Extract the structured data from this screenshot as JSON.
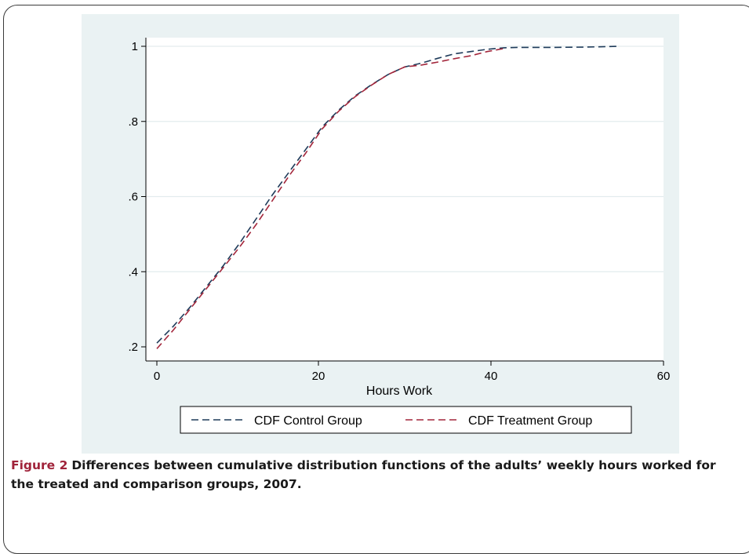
{
  "chart_data": {
    "type": "line",
    "xlabel": "Hours Work",
    "ylabel": "",
    "xlim": [
      0,
      60
    ],
    "ylim": [
      0.2,
      1.0
    ],
    "x_ticks": [
      0,
      20,
      40,
      60
    ],
    "x_tick_labels": [
      "0",
      "20",
      "40",
      "60"
    ],
    "y_ticks": [
      0.2,
      0.4,
      0.6,
      0.8,
      1.0
    ],
    "y_tick_labels": [
      ".2",
      ".4",
      ".6",
      ".8",
      "1"
    ],
    "grid": "horizontal",
    "legend_position": "bottom",
    "series": [
      {
        "name": "CDF Control Group",
        "color": "#1f3b5a",
        "dash": "dashed",
        "points": [
          [
            0,
            0.21
          ],
          [
            2,
            0.255
          ],
          [
            4,
            0.305
          ],
          [
            6,
            0.36
          ],
          [
            8,
            0.415
          ],
          [
            10,
            0.475
          ],
          [
            12,
            0.54
          ],
          [
            14,
            0.605
          ],
          [
            16,
            0.665
          ],
          [
            18,
            0.725
          ],
          [
            20,
            0.785
          ],
          [
            22,
            0.83
          ],
          [
            24,
            0.868
          ],
          [
            26,
            0.898
          ],
          [
            28,
            0.925
          ],
          [
            30,
            0.945
          ],
          [
            32,
            0.955
          ],
          [
            34,
            0.968
          ],
          [
            36,
            0.98
          ],
          [
            38,
            0.986
          ],
          [
            40,
            0.992
          ],
          [
            42,
            0.996
          ],
          [
            44,
            0.997
          ],
          [
            48,
            0.997
          ],
          [
            52,
            0.998
          ],
          [
            56,
            1.0
          ]
        ]
      },
      {
        "name": "CDF Treatment Group",
        "color": "#a3263b",
        "dash": "dashed",
        "points": [
          [
            0,
            0.195
          ],
          [
            2,
            0.245
          ],
          [
            4,
            0.3
          ],
          [
            6,
            0.355
          ],
          [
            8,
            0.41
          ],
          [
            10,
            0.465
          ],
          [
            12,
            0.525
          ],
          [
            14,
            0.59
          ],
          [
            16,
            0.655
          ],
          [
            18,
            0.715
          ],
          [
            20,
            0.78
          ],
          [
            22,
            0.827
          ],
          [
            24,
            0.866
          ],
          [
            26,
            0.897
          ],
          [
            28,
            0.925
          ],
          [
            30,
            0.945
          ],
          [
            32,
            0.95
          ],
          [
            34,
            0.958
          ],
          [
            36,
            0.967
          ],
          [
            38,
            0.975
          ],
          [
            40,
            0.986
          ],
          [
            42,
            0.994
          ]
        ]
      }
    ]
  },
  "caption": {
    "figure_label": "Figure 2",
    "text": "Differences between cumulative distribution functions of the adults’ weekly hours worked for the treated and comparison groups, 2007."
  }
}
